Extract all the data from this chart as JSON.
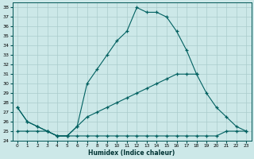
{
  "xlabel": "Humidex (Indice chaleur)",
  "bg_color": "#cce8e8",
  "grid_color": "#aacccc",
  "line_color": "#006060",
  "xlim": [
    -0.5,
    23.5
  ],
  "ylim": [
    24,
    38.5
  ],
  "yticks": [
    24,
    25,
    26,
    27,
    28,
    29,
    30,
    31,
    32,
    33,
    34,
    35,
    36,
    37,
    38
  ],
  "xticks": [
    0,
    1,
    2,
    3,
    4,
    5,
    6,
    7,
    8,
    9,
    10,
    11,
    12,
    13,
    14,
    15,
    16,
    17,
    18,
    19,
    20,
    21,
    22,
    23
  ],
  "series": [
    {
      "x": [
        0,
        1,
        2,
        3,
        4,
        5,
        6,
        7,
        8,
        9,
        10,
        11,
        12,
        13,
        14,
        15,
        16,
        17,
        18,
        19,
        20,
        21,
        22,
        23
      ],
      "y": [
        27.5,
        26.0,
        25.5,
        25.0,
        24.5,
        24.5,
        25.5,
        30.0,
        31.5,
        33.0,
        34.5,
        35.5,
        38.0,
        37.5,
        37.5,
        37.0,
        35.5,
        33.5,
        31.0,
        null,
        null,
        null,
        null,
        null
      ]
    },
    {
      "x": [
        0,
        1,
        2,
        3,
        4,
        5,
        6,
        7,
        8,
        9,
        10,
        11,
        12,
        13,
        14,
        15,
        16,
        17,
        18,
        19,
        20,
        21,
        22,
        23
      ],
      "y": [
        27.5,
        26.0,
        25.5,
        25.0,
        24.5,
        24.5,
        25.5,
        26.5,
        27.0,
        27.5,
        28.0,
        28.5,
        29.0,
        29.5,
        30.0,
        30.5,
        31.0,
        31.0,
        31.0,
        29.0,
        27.5,
        26.5,
        25.5,
        25.0
      ]
    },
    {
      "x": [
        0,
        1,
        2,
        3,
        4,
        5,
        6,
        7,
        8,
        9,
        10,
        11,
        12,
        13,
        14,
        15,
        16,
        17,
        18,
        19,
        20,
        21,
        22,
        23
      ],
      "y": [
        25.0,
        25.0,
        25.0,
        25.0,
        24.5,
        24.5,
        24.5,
        24.5,
        24.5,
        24.5,
        24.5,
        24.5,
        24.5,
        24.5,
        24.5,
        24.5,
        24.5,
        24.5,
        24.5,
        24.5,
        24.5,
        25.0,
        25.0,
        25.0
      ]
    }
  ]
}
